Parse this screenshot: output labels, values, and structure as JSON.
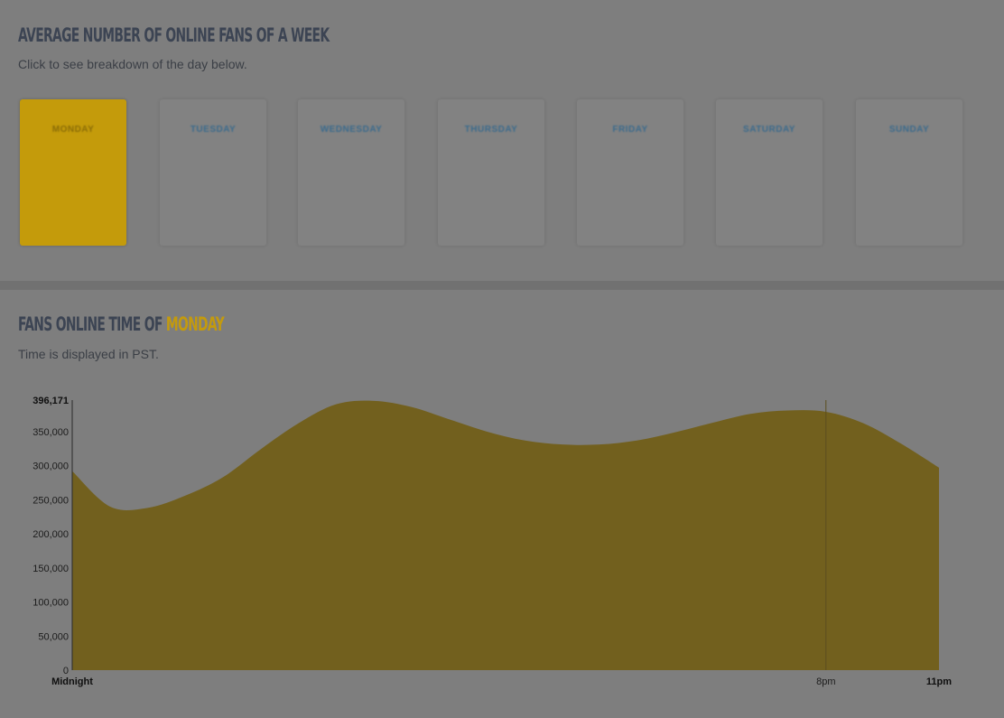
{
  "week": {
    "title": "AVERAGE NUMBER OF ONLINE FANS OF A WEEK",
    "subtitle": "Click to see breakdown of the day below."
  },
  "day_cards": [
    {
      "day": "MONDAY",
      "value": "",
      "pct": "",
      "time": ""
    },
    {
      "day": "TUESDAY",
      "value": "",
      "pct": "",
      "time": ""
    },
    {
      "day": "WEDNESDAY",
      "value": "",
      "pct": "",
      "time": ""
    },
    {
      "day": "THURSDAY",
      "value": "",
      "pct": "",
      "time": ""
    },
    {
      "day": "FRIDAY",
      "value": "",
      "pct": "",
      "time": ""
    },
    {
      "day": "SATURDAY",
      "value": "",
      "pct": "",
      "time": ""
    },
    {
      "day": "SUNDAY",
      "value": "",
      "pct": "",
      "time": ""
    }
  ],
  "chart_section": {
    "title_prefix": "FANS ONLINE TIME OF ",
    "title_day": "MONDAY",
    "subtitle": "Time is displayed in PST."
  },
  "colors": {
    "accent": "#c39a0e",
    "area_fill": "#72601e",
    "panel_bg": "#7e7e7e"
  },
  "chart_data": {
    "type": "area",
    "title": "",
    "x": [
      0,
      1,
      2,
      3,
      4,
      5,
      6,
      7,
      8,
      9,
      10,
      11,
      12,
      13,
      14,
      15,
      16,
      17,
      18,
      19,
      20,
      21,
      22,
      23
    ],
    "values": [
      292000,
      240000,
      238000,
      256000,
      283000,
      324000,
      362000,
      390000,
      395000,
      386000,
      368000,
      350000,
      337000,
      331000,
      331000,
      337000,
      349000,
      363000,
      376000,
      381000,
      379000,
      362000,
      332000,
      297000
    ],
    "ylim": [
      0,
      396171
    ],
    "yticks": [
      0,
      50000,
      100000,
      150000,
      200000,
      250000,
      300000,
      350000,
      396171
    ],
    "ytick_labels": [
      "0",
      "50,000",
      "100,000",
      "150,000",
      "200,000",
      "250,000",
      "300,000",
      "350,000",
      "396,171"
    ],
    "xtick_labels": [
      {
        "x": 0,
        "label": "Midnight",
        "bold": true
      },
      {
        "x": 20,
        "label": "8pm",
        "bold": false
      },
      {
        "x": 23,
        "label": "11pm",
        "bold": true
      }
    ],
    "hover_marker_x": 20,
    "grid": false,
    "xlabel": "",
    "ylabel": ""
  }
}
